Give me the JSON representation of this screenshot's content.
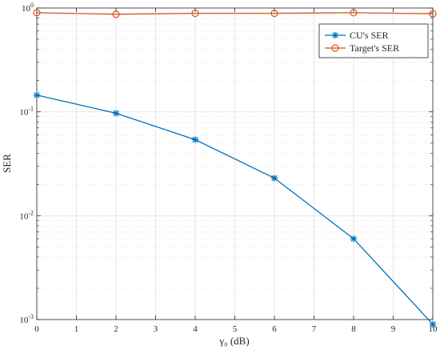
{
  "chart_data": {
    "type": "line",
    "title": "",
    "xlabel": "γ₀ (dB)",
    "ylabel": "SER",
    "xscale": "linear",
    "yscale": "log",
    "xlim": [
      0,
      10
    ],
    "ylim": [
      0.001,
      1
    ],
    "grid": true,
    "legend_position": "top-right",
    "x_ticks": [
      "0",
      "1",
      "2",
      "3",
      "4",
      "5",
      "6",
      "7",
      "8",
      "9",
      "10"
    ],
    "y_ticks": [
      {
        "value": 0.001,
        "base": "10",
        "exp": "-3"
      },
      {
        "value": 0.01,
        "base": "10",
        "exp": "-2"
      },
      {
        "value": 0.1,
        "base": "10",
        "exp": "-1"
      },
      {
        "value": 1,
        "base": "10",
        "exp": "0"
      }
    ],
    "x": [
      0,
      2,
      4,
      6,
      8,
      10
    ],
    "series": [
      {
        "name": "CU's SER",
        "color": "#0072bd",
        "marker": "asterisk",
        "values": [
          0.145,
          0.097,
          0.054,
          0.023,
          0.006,
          0.0009
        ]
      },
      {
        "name": "Target's SER",
        "color": "#d95319",
        "marker": "circle",
        "values": [
          0.9,
          0.87,
          0.89,
          0.89,
          0.9,
          0.88
        ]
      }
    ]
  }
}
